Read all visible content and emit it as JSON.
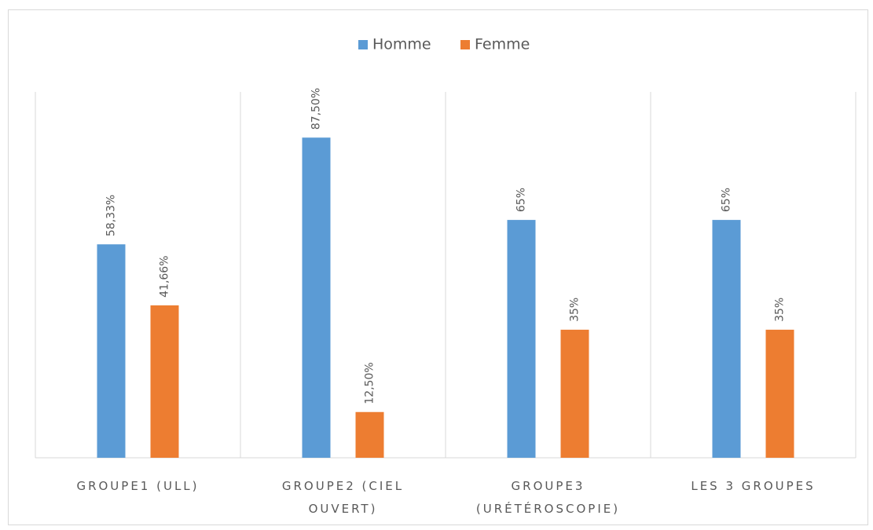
{
  "chart_data": {
    "type": "bar",
    "categories": [
      "GROUPE1 (ULL)",
      "GROUPE2 (CIEL OUVERT)",
      "GROUPE3 (URÉTÉROSCOPIE)",
      "LES 3 GROUPES"
    ],
    "series": [
      {
        "name": "Homme",
        "color": "#5b9bd5",
        "values": [
          58.33,
          87.5,
          65,
          65
        ],
        "value_labels": [
          "58,33%",
          "87,50%",
          "65%",
          "65%"
        ]
      },
      {
        "name": "Femme",
        "color": "#ed7d31",
        "values": [
          41.66,
          12.5,
          35,
          35
        ],
        "value_labels": [
          "41,66%",
          "12,50%",
          "35%",
          "35%"
        ]
      }
    ],
    "ylim": [
      0,
      100
    ],
    "legend": "top"
  }
}
